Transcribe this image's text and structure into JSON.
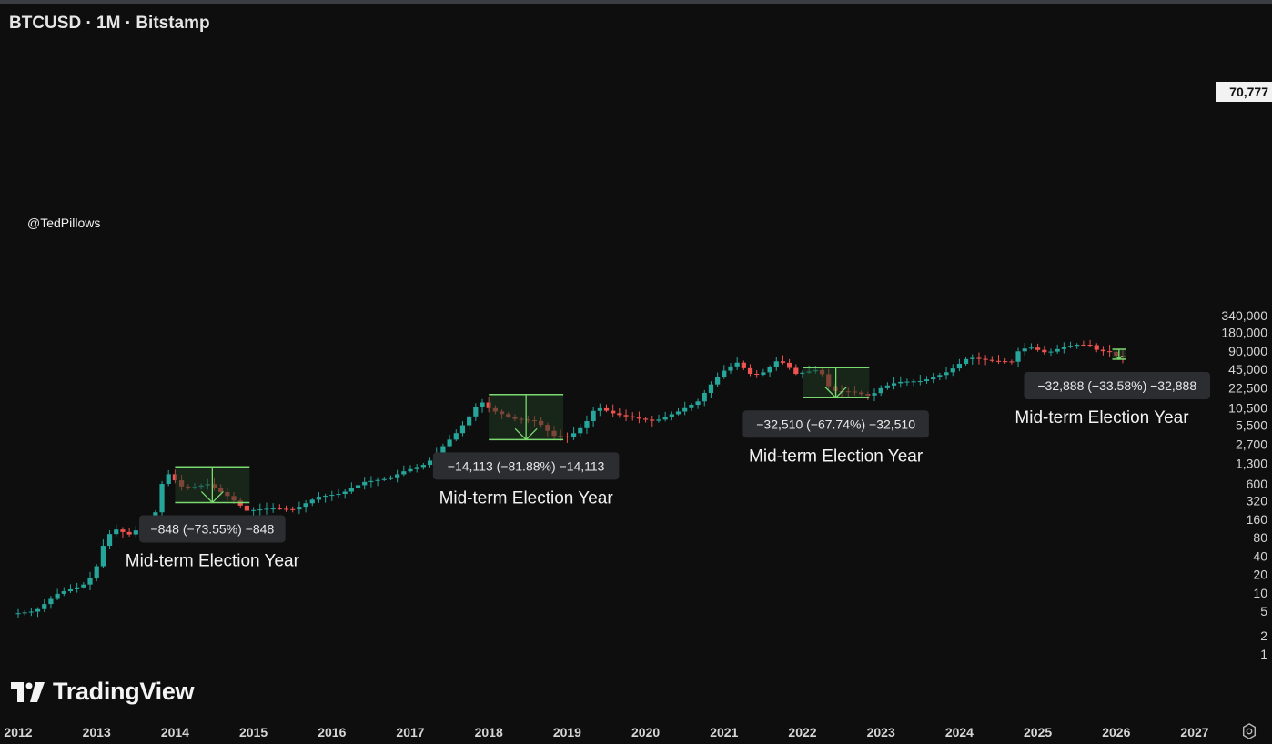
{
  "header": {
    "title": "BTCUSD · 1M · Bitstamp"
  },
  "watermark": "@TedPillows",
  "branding": {
    "logo_text": "TradingView"
  },
  "current_price": {
    "label": "70,777",
    "value": 70777
  },
  "colors": {
    "background": "#0e0e0f",
    "up": "#26a69a",
    "down": "#ef5350",
    "box_line": "#7bd96f",
    "box_fill": "#1f3a22",
    "label_bg": "#2c2d30"
  },
  "chart_data": {
    "type": "candlestick",
    "title": "BTCUSD · 1M · Bitstamp",
    "y_scale": "log",
    "ylim": [
      0.75,
      340000
    ],
    "xlim": [
      2012.0,
      2027.5
    ],
    "y_ticks": [
      {
        "label": "340,000",
        "value": 340000
      },
      {
        "label": "180,000",
        "value": 180000
      },
      {
        "label": "90,000",
        "value": 90000
      },
      {
        "label": "45,000",
        "value": 45000
      },
      {
        "label": "22,500",
        "value": 22500
      },
      {
        "label": "10,500",
        "value": 10500
      },
      {
        "label": "5,500",
        "value": 5500
      },
      {
        "label": "2,700",
        "value": 2700
      },
      {
        "label": "1,300",
        "value": 1300
      },
      {
        "label": "600",
        "value": 600
      },
      {
        "label": "320",
        "value": 320
      },
      {
        "label": "160",
        "value": 160
      },
      {
        "label": "80",
        "value": 80
      },
      {
        "label": "40",
        "value": 40
      },
      {
        "label": "20",
        "value": 20
      },
      {
        "label": "10",
        "value": 10
      },
      {
        "label": "5",
        "value": 5
      },
      {
        "label": "2",
        "value": 2
      },
      {
        "label": "1",
        "value": 1
      }
    ],
    "x_ticks": [
      {
        "label": "2012",
        "value": 2012
      },
      {
        "label": "2013",
        "value": 2013
      },
      {
        "label": "2014",
        "value": 2014
      },
      {
        "label": "2015",
        "value": 2015
      },
      {
        "label": "2016",
        "value": 2016
      },
      {
        "label": "2017",
        "value": 2017
      },
      {
        "label": "2018",
        "value": 2018
      },
      {
        "label": "2019",
        "value": 2019
      },
      {
        "label": "2020",
        "value": 2020
      },
      {
        "label": "2021",
        "value": 2021
      },
      {
        "label": "2022",
        "value": 2022
      },
      {
        "label": "2023",
        "value": 2023
      },
      {
        "label": "2024",
        "value": 2024
      },
      {
        "label": "2025",
        "value": 2025
      },
      {
        "label": "2026",
        "value": 2026
      },
      {
        "label": "2027",
        "value": 2027
      }
    ],
    "anchors": [
      [
        2012.0,
        4.5
      ],
      [
        2012.3,
        5
      ],
      [
        2012.6,
        10
      ],
      [
        2012.9,
        13
      ],
      [
        2013.05,
        20
      ],
      [
        2013.2,
        80
      ],
      [
        2013.32,
        110
      ],
      [
        2013.5,
        90
      ],
      [
        2013.7,
        130
      ],
      [
        2013.85,
        220
      ],
      [
        2013.95,
        1000
      ],
      [
        2014.2,
        500
      ],
      [
        2014.5,
        600
      ],
      [
        2014.8,
        350
      ],
      [
        2015.0,
        220
      ],
      [
        2015.3,
        240
      ],
      [
        2015.6,
        230
      ],
      [
        2015.9,
        370
      ],
      [
        2016.2,
        420
      ],
      [
        2016.5,
        650
      ],
      [
        2016.8,
        740
      ],
      [
        2017.0,
        970
      ],
      [
        2017.3,
        1300
      ],
      [
        2017.5,
        2500
      ],
      [
        2017.7,
        4500
      ],
      [
        2017.9,
        10000
      ],
      [
        2017.97,
        14000
      ],
      [
        2018.1,
        10000
      ],
      [
        2018.4,
        7000
      ],
      [
        2018.7,
        6400
      ],
      [
        2018.9,
        3700
      ],
      [
        2019.1,
        3500
      ],
      [
        2019.3,
        5500
      ],
      [
        2019.45,
        11000
      ],
      [
        2019.7,
        8300
      ],
      [
        2019.95,
        7200
      ],
      [
        2020.2,
        6400
      ],
      [
        2020.5,
        9200
      ],
      [
        2020.75,
        13500
      ],
      [
        2020.95,
        29000
      ],
      [
        2021.1,
        45000
      ],
      [
        2021.25,
        58000
      ],
      [
        2021.45,
        35000
      ],
      [
        2021.6,
        41000
      ],
      [
        2021.75,
        61000
      ],
      [
        2021.85,
        57000
      ],
      [
        2022.0,
        38000
      ],
      [
        2022.3,
        45000
      ],
      [
        2022.45,
        20000
      ],
      [
        2022.7,
        19500
      ],
      [
        2022.95,
        16500
      ],
      [
        2023.1,
        23000
      ],
      [
        2023.3,
        28000
      ],
      [
        2023.6,
        29000
      ],
      [
        2023.8,
        35000
      ],
      [
        2023.95,
        42000
      ],
      [
        2024.2,
        71000
      ],
      [
        2024.5,
        62000
      ],
      [
        2024.75,
        60000
      ],
      [
        2024.85,
        96000
      ],
      [
        2025.0,
        102000
      ],
      [
        2025.2,
        83000
      ],
      [
        2025.4,
        104000
      ],
      [
        2025.6,
        115000
      ],
      [
        2025.75,
        112000
      ],
      [
        2025.85,
        91000
      ],
      [
        2026.0,
        87000
      ],
      [
        2026.12,
        70777
      ]
    ],
    "drawdowns": [
      {
        "label": "−848 (−73.55%) −848",
        "note": "Mid-term Election Year",
        "x_start": 2014.0,
        "x_end": 2014.95,
        "y_top": 1150,
        "y_bottom": 300
      },
      {
        "label": "−14,113 (−81.88%) −14,113",
        "note": "Mid-term Election Year",
        "x_start": 2018.0,
        "x_end": 2018.95,
        "y_top": 17500,
        "y_bottom": 3200
      },
      {
        "label": "−32,510 (−67.74%) −32,510",
        "note": "Mid-term Election Year",
        "x_start": 2022.0,
        "x_end": 2022.85,
        "y_top": 48000,
        "y_bottom": 15500
      },
      {
        "label": "−32,888 (−33.58%) −32,888",
        "note": "Mid-term Election Year",
        "x_start": 2025.95,
        "x_end": 2026.12,
        "y_top": 96000,
        "y_bottom": 66000
      }
    ]
  }
}
